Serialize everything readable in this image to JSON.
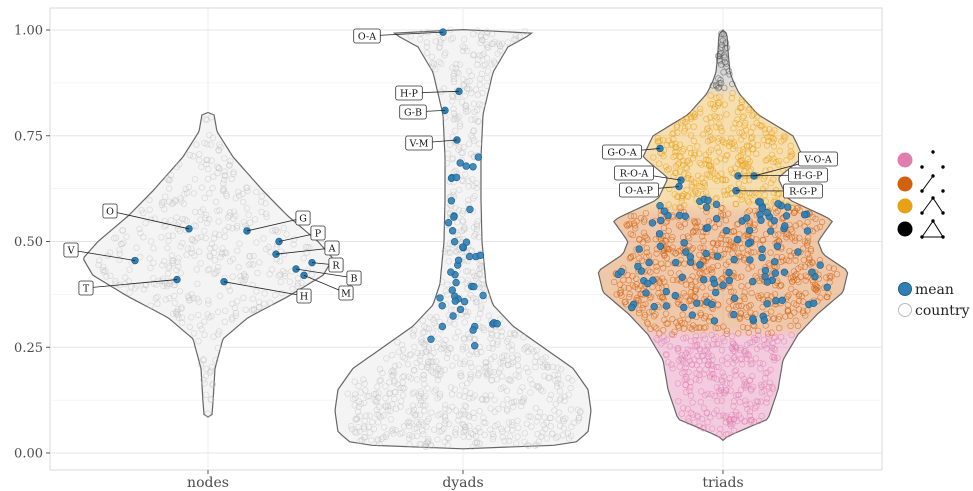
{
  "chart_data": {
    "type": "violin",
    "categories": [
      "nodes",
      "dyads",
      "triads"
    ],
    "ylim": [
      0,
      1
    ],
    "yticks": [
      "0.00",
      "0.25",
      "0.50",
      "0.75",
      "1.00"
    ],
    "grid": true,
    "legend_position": "right",
    "colors": {
      "mean": "#2f7fb5",
      "triad_0": "#e07fae",
      "triad_1": "#d2610d",
      "triad_2": "#e8a016",
      "triad_3": "#000000"
    },
    "means": {
      "nodes": [
        {
          "label": "O",
          "y": 0.53
        },
        {
          "label": "G",
          "y": 0.525
        },
        {
          "label": "P",
          "y": 0.5
        },
        {
          "label": "A",
          "y": 0.47
        },
        {
          "label": "V",
          "y": 0.455
        },
        {
          "label": "R",
          "y": 0.45
        },
        {
          "label": "B",
          "y": 0.435
        },
        {
          "label": "M",
          "y": 0.42
        },
        {
          "label": "T",
          "y": 0.41
        },
        {
          "label": "H",
          "y": 0.405
        }
      ],
      "dyads": [
        {
          "label": "O-A",
          "y": 0.995
        },
        {
          "label": "H-P",
          "y": 0.855
        },
        {
          "label": "G-B",
          "y": 0.81
        },
        {
          "label": "V-M",
          "y": 0.74
        }
      ],
      "triads": [
        {
          "label": "G-O-A",
          "y": 0.72
        },
        {
          "label": "V-O-A",
          "y": 0.655
        },
        {
          "label": "H-G-P",
          "y": 0.655
        },
        {
          "label": "R-O-A",
          "y": 0.645
        },
        {
          "label": "O-A-P",
          "y": 0.63
        },
        {
          "label": "R-G-P",
          "y": 0.62
        }
      ]
    },
    "legend": {
      "shape_entries": 4,
      "point_entries": [
        {
          "label": "mean",
          "color": "#2f7fb5"
        },
        {
          "label": "country",
          "color": "#ffffff"
        }
      ]
    }
  }
}
